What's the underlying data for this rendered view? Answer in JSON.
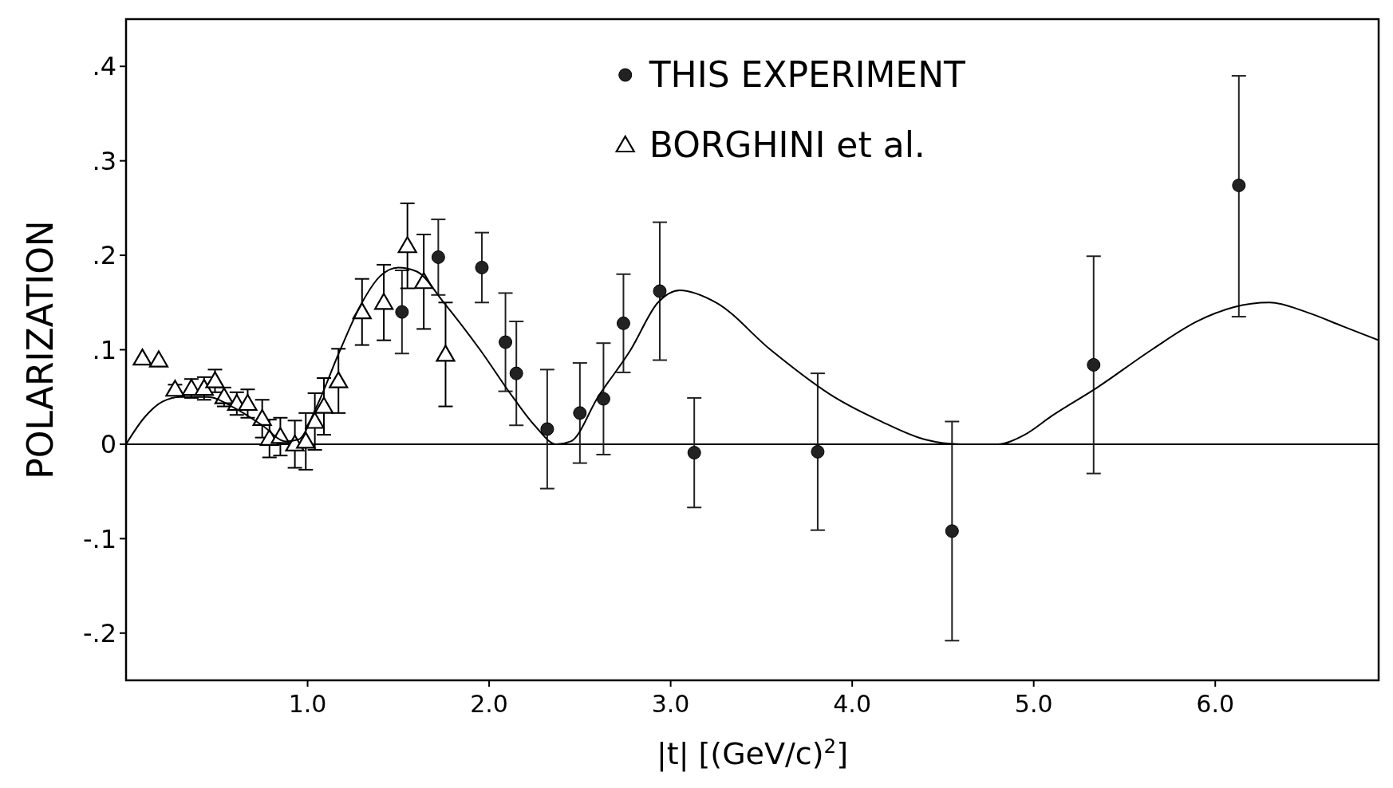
{
  "chart_data": {
    "type": "scatter",
    "xlabel": "|t| [(GeV/c)$^{2}$]",
    "ylabel": "POLARIZATION",
    "xlim": [
      0,
      6.9
    ],
    "ylim": [
      -0.25,
      0.45
    ],
    "xticks": [
      {
        "value": 1,
        "label": "1.0"
      },
      {
        "value": 2,
        "label": "2.0"
      },
      {
        "value": 3,
        "label": "3.0"
      },
      {
        "value": 4,
        "label": "4.0"
      },
      {
        "value": 5,
        "label": "5.0"
      },
      {
        "value": 6,
        "label": "6.0"
      }
    ],
    "yticks": [
      {
        "value": -0.2,
        "label": "-.2"
      },
      {
        "value": -0.1,
        "label": "-.1"
      },
      0,
      {
        "value": 0.1,
        "label": ".1"
      },
      {
        "value": 0.2,
        "label": ".2"
      },
      {
        "value": 0.3,
        "label": ".3"
      },
      {
        "value": 0.4,
        "label": ".4"
      }
    ],
    "legend": "top",
    "grid": false,
    "ref_lines": [
      {
        "axis": "y",
        "value": 0,
        "color": "#000000"
      }
    ],
    "series": [
      {
        "name": "THIS EXPERIMENT",
        "marker": "circle",
        "color": "#222222",
        "x": [
          1.52,
          1.72,
          1.96,
          2.09,
          2.15,
          2.32,
          2.5,
          2.63,
          2.74,
          2.94,
          3.13,
          3.81,
          4.55,
          5.33,
          6.13
        ],
        "values": [
          0.14,
          0.198,
          0.187,
          0.108,
          0.075,
          0.016,
          0.033,
          0.048,
          0.128,
          0.162,
          -0.009,
          -0.008,
          -0.092,
          0.084,
          0.274
        ],
        "errors": [
          0.044,
          0.04,
          0.037,
          0.052,
          0.055,
          0.063,
          0.053,
          0.059,
          0.052,
          0.073,
          0.058,
          0.083,
          0.116,
          0.115,
          [
            0.135,
            0.39
          ]
        ]
      },
      {
        "name": "BORGHINI et al.",
        "marker": "triangle",
        "color": "#000000",
        "x": [
          0.09,
          0.18,
          0.27,
          0.36,
          0.43,
          0.49,
          0.54,
          0.61,
          0.67,
          0.75,
          0.79,
          0.85,
          0.93,
          0.99,
          1.04,
          1.09,
          1.17,
          1.3,
          1.42,
          1.55,
          1.64,
          1.76
        ],
        "values": [
          0.091,
          0.089,
          0.058,
          0.059,
          0.059,
          0.067,
          0.05,
          0.043,
          0.043,
          0.027,
          0.006,
          0.008,
          0.0,
          0.003,
          0.024,
          0.04,
          0.067,
          0.14,
          0.15,
          0.21,
          0.172,
          0.095
        ],
        "errors": [
          null,
          null,
          0.005,
          0.01,
          0.012,
          0.012,
          0.01,
          0.012,
          0.015,
          0.02,
          0.02,
          0.02,
          0.025,
          0.03,
          0.03,
          0.03,
          0.034,
          0.035,
          0.04,
          0.045,
          0.05,
          0.055
        ]
      },
      {
        "type": "line",
        "marker": "none",
        "color": "#000000",
        "x": [
          0,
          0.1,
          0.2,
          0.3,
          0.45,
          0.6,
          0.75,
          0.88,
          0.95,
          1.05,
          1.18,
          1.3,
          1.4,
          1.5,
          1.6,
          1.75,
          1.95,
          2.13,
          2.25,
          2.37,
          2.45,
          2.6,
          2.78,
          2.93,
          3.05,
          3.25,
          3.55,
          3.9,
          4.15,
          4.4,
          4.6,
          4.8,
          4.95,
          5.1,
          5.35,
          5.65,
          5.9,
          6.1,
          6.3,
          6.5,
          6.7,
          6.9
        ],
        "values": [
          0,
          0.028,
          0.045,
          0.05,
          0.05,
          0.038,
          0.02,
          0.003,
          0.005,
          0.04,
          0.1,
          0.15,
          0.178,
          0.187,
          0.183,
          0.15,
          0.1,
          0.05,
          0.02,
          0.0,
          0.003,
          0.05,
          0.1,
          0.15,
          0.163,
          0.15,
          0.1,
          0.05,
          0.025,
          0.005,
          0,
          0,
          0.01,
          0.03,
          0.06,
          0.1,
          0.13,
          0.145,
          0.15,
          0.14,
          0.125,
          0.11
        ]
      }
    ]
  }
}
